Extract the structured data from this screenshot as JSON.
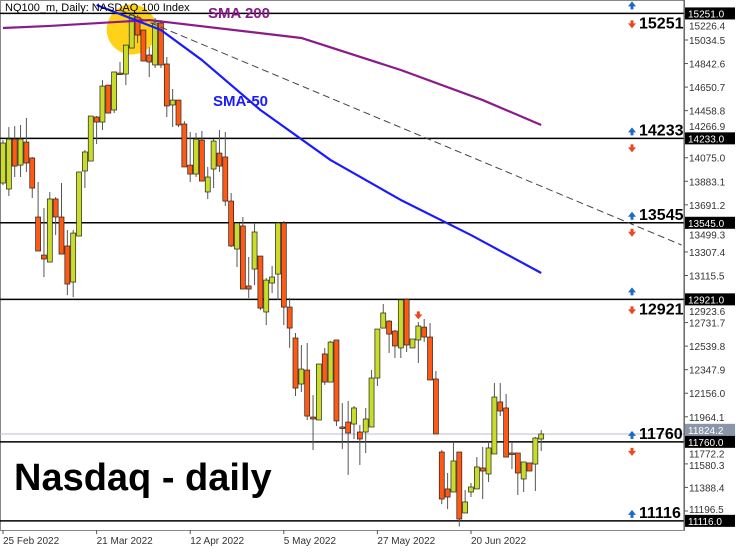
{
  "header": {
    "title": "NQ100_m, Daily:  NASDAQ 100 Index"
  },
  "annotation": {
    "main_label": "Nasdaq - daily",
    "sma200_label": "SMA 200",
    "sma50_label": "SMA-50"
  },
  "colors": {
    "bull": "#c8dc28",
    "bear": "#ff5a14",
    "sma200": "#8b1a8b",
    "sma50": "#1a1aff",
    "highlight": "#ffd21a",
    "up_arrow": "#1a6ac8",
    "down_arrow": "#f0461e"
  },
  "chart_data": {
    "type": "candlestick",
    "title": "NQ100_m, Daily:  NASDAQ 100 Index",
    "ylim": [
      11050,
      15360
    ],
    "y_ticks": [
      "15226.4",
      "15034.5",
      "14842.6",
      "14650.7",
      "14458.8",
      "14266.9",
      "14075.0",
      "13883.1",
      "13691.2",
      "13499.3",
      "13307.4",
      "13115.5",
      "12923.6",
      "12731.7",
      "12539.8",
      "12347.9",
      "12156.0",
      "11964.1",
      "11772.2",
      "11580.3",
      "11388.4",
      "11196.5"
    ],
    "x_labels": [
      {
        "bar": 0,
        "label": "25 Feb 2022"
      },
      {
        "bar": 16,
        "label": "21 Mar 2022"
      },
      {
        "bar": 32,
        "label": "12 Apr 2022"
      },
      {
        "bar": 48,
        "label": "5 May 2022"
      },
      {
        "bar": 64,
        "label": "27 May 2022"
      },
      {
        "bar": 80,
        "label": "20 Jun 2022"
      }
    ],
    "ohlc": [
      [
        13869,
        14219,
        13852,
        14195
      ],
      [
        13820,
        14325,
        13763,
        14227
      ],
      [
        14227,
        14333,
        13918,
        14007
      ],
      [
        14015,
        14342,
        13918,
        14227
      ],
      [
        14203,
        14399,
        13959,
        14032
      ],
      [
        14073,
        14081,
        13747,
        13828
      ],
      [
        13592,
        13877,
        13315,
        13315
      ],
      [
        13282,
        13665,
        13103,
        13250
      ],
      [
        13225,
        13796,
        13225,
        13739
      ],
      [
        13739,
        13755,
        13445,
        13592
      ],
      [
        13592,
        13869,
        13290,
        13290
      ],
      [
        13356,
        13486,
        12956,
        13046
      ],
      [
        13062,
        13486,
        12940,
        13461
      ],
      [
        13437,
        13959,
        13437,
        13959
      ],
      [
        13967,
        14138,
        13828,
        14122
      ],
      [
        14048,
        14415,
        14048,
        14415
      ],
      [
        14407,
        14415,
        14187,
        14366
      ],
      [
        14366,
        14708,
        14301,
        14659
      ],
      [
        14667,
        14667,
        14439,
        14439
      ],
      [
        14464,
        14774,
        14439,
        14774
      ],
      [
        14765,
        14855,
        14749,
        14757
      ],
      [
        14757,
        14993,
        14667,
        14993
      ],
      [
        14969,
        15254,
        14969,
        15238
      ],
      [
        15221,
        15238,
        15010,
        15075
      ],
      [
        15116,
        15116,
        14863,
        14863
      ],
      [
        14912,
        14977,
        14733,
        14855
      ],
      [
        14831,
        15214,
        14806,
        15173
      ],
      [
        15173,
        15197,
        14806,
        14831
      ],
      [
        14839,
        14896,
        14407,
        14497
      ],
      [
        14505,
        14635,
        14325,
        14545
      ],
      [
        14545,
        14545,
        14325,
        14342
      ],
      [
        14350,
        14374,
        14000,
        14000
      ],
      [
        14015,
        14285,
        13877,
        13942
      ],
      [
        13942,
        14277,
        13918,
        14227
      ],
      [
        14219,
        14293,
        13885,
        13885
      ],
      [
        13796,
        14000,
        13739,
        13918
      ],
      [
        13983,
        14227,
        13828,
        14211
      ],
      [
        14113,
        14301,
        13959,
        14007
      ],
      [
        14081,
        14285,
        13682,
        13722
      ],
      [
        13722,
        13788,
        13348,
        13356
      ],
      [
        13331,
        13543,
        13185,
        13543
      ],
      [
        13519,
        13592,
        13005,
        13005
      ],
      [
        13030,
        13266,
        12932,
        13005
      ],
      [
        13168,
        13543,
        13038,
        13470
      ],
      [
        13274,
        13274,
        12834,
        12850
      ],
      [
        12818,
        13095,
        12712,
        13078
      ],
      [
        13054,
        13193,
        12972,
        13103
      ],
      [
        13127,
        13551,
        12917,
        13543
      ],
      [
        13543,
        13559,
        12712,
        12858
      ],
      [
        12858,
        12932,
        12525,
        12687
      ],
      [
        12606,
        12647,
        12133,
        12198
      ],
      [
        12231,
        12549,
        12166,
        12353
      ],
      [
        12345,
        12565,
        11938,
        11970
      ],
      [
        11962,
        12141,
        11693,
        11946
      ],
      [
        11938,
        12394,
        11938,
        12394
      ],
      [
        12476,
        12525,
        12223,
        12247
      ],
      [
        12247,
        12582,
        12247,
        12573
      ],
      [
        12590,
        12590,
        11889,
        11930
      ],
      [
        11881,
        12076,
        11701,
        11872
      ],
      [
        11921,
        12093,
        11490,
        11832
      ],
      [
        11905,
        12052,
        11783,
        12036
      ],
      [
        11840,
        11897,
        11571,
        11783
      ],
      [
        11840,
        12036,
        11669,
        11946
      ],
      [
        11881,
        12345,
        11881,
        12280
      ],
      [
        12280,
        12679,
        12215,
        12679
      ],
      [
        12687,
        12883,
        12687,
        12810
      ],
      [
        12744,
        12752,
        12484,
        12638
      ],
      [
        12663,
        12671,
        12443,
        12541
      ],
      [
        12525,
        12917,
        12443,
        12917
      ],
      [
        12921,
        12921,
        12492,
        12549
      ],
      [
        12525,
        12598,
        12525,
        12598
      ],
      [
        12590,
        12736,
        12402,
        12704
      ],
      [
        12695,
        12761,
        12573,
        12614
      ],
      [
        12614,
        12728,
        12264,
        12264
      ],
      [
        12272,
        12337,
        11824,
        11824
      ],
      [
        11677,
        11693,
        11253,
        11294
      ],
      [
        11376,
        11506,
        11212,
        11310
      ],
      [
        11351,
        11758,
        11351,
        11604
      ],
      [
        11677,
        11677,
        11070,
        11131
      ],
      [
        11180,
        11367,
        11180,
        11270
      ],
      [
        11351,
        11424,
        11310,
        11392
      ],
      [
        11376,
        11636,
        11376,
        11555
      ],
      [
        11547,
        11718,
        11294,
        11522
      ],
      [
        11498,
        11750,
        11433,
        11710
      ],
      [
        11661,
        12239,
        11661,
        12125
      ],
      [
        12085,
        12239,
        11970,
        12011
      ],
      [
        12036,
        12150,
        11636,
        11636
      ],
      [
        11669,
        11758,
        11538,
        11661
      ],
      [
        11669,
        11669,
        11327,
        11506
      ],
      [
        11457,
        11596,
        11351,
        11596
      ],
      [
        11588,
        11588,
        11522,
        11522
      ],
      [
        11579,
        11800,
        11359,
        11791
      ],
      [
        11783,
        11856,
        11685,
        11824
      ]
    ],
    "sma200": [
      [
        0,
        15132
      ],
      [
        8,
        15149
      ],
      [
        25,
        15197
      ],
      [
        51,
        15051
      ],
      [
        68,
        14790
      ],
      [
        82,
        14545
      ],
      [
        92,
        14342
      ]
    ],
    "sma50": [
      [
        16,
        15320
      ],
      [
        27,
        15116
      ],
      [
        34,
        14871
      ],
      [
        44,
        14464
      ],
      [
        56,
        14056
      ],
      [
        68,
        13731
      ],
      [
        80,
        13445
      ],
      [
        92,
        13136
      ]
    ],
    "trendline": {
      "style": "dashed",
      "from": [
        20,
        15279
      ],
      "to": [
        116,
        13364
      ]
    },
    "highlight_circle": {
      "bar": 22,
      "price": 15120
    },
    "current_price": {
      "value": 11824.2,
      "label": "11824.2"
    },
    "levels": [
      {
        "value": 15251,
        "axis_label": "15251.0",
        "text": "15251",
        "arrow_above": "up",
        "arrow_text": "down",
        "arrow_below": null
      },
      {
        "value": 14233,
        "axis_label": "14233.0",
        "text": "14233",
        "arrow_above": null,
        "arrow_text": "up",
        "arrow_below": "down"
      },
      {
        "value": 13545,
        "axis_label": "13545.0",
        "text": "13545",
        "arrow_above": null,
        "arrow_text": "up",
        "arrow_below": "down"
      },
      {
        "value": 12921,
        "axis_label": "12921.0",
        "text": "12921",
        "arrow_above": "up",
        "arrow_text": "down",
        "arrow_below": null
      },
      {
        "value": 11760,
        "axis_label": "11760.0",
        "text": "11760",
        "arrow_above": null,
        "arrow_text": "up",
        "arrow_below": "down"
      },
      {
        "value": 11116,
        "axis_label": "11116.0",
        "text": "11116",
        "arrow_above": null,
        "arrow_text": "up",
        "arrow_below": null
      }
    ],
    "signal_arrow": {
      "bar": 71,
      "direction": "down",
      "price": 12790
    },
    "grid": false
  }
}
